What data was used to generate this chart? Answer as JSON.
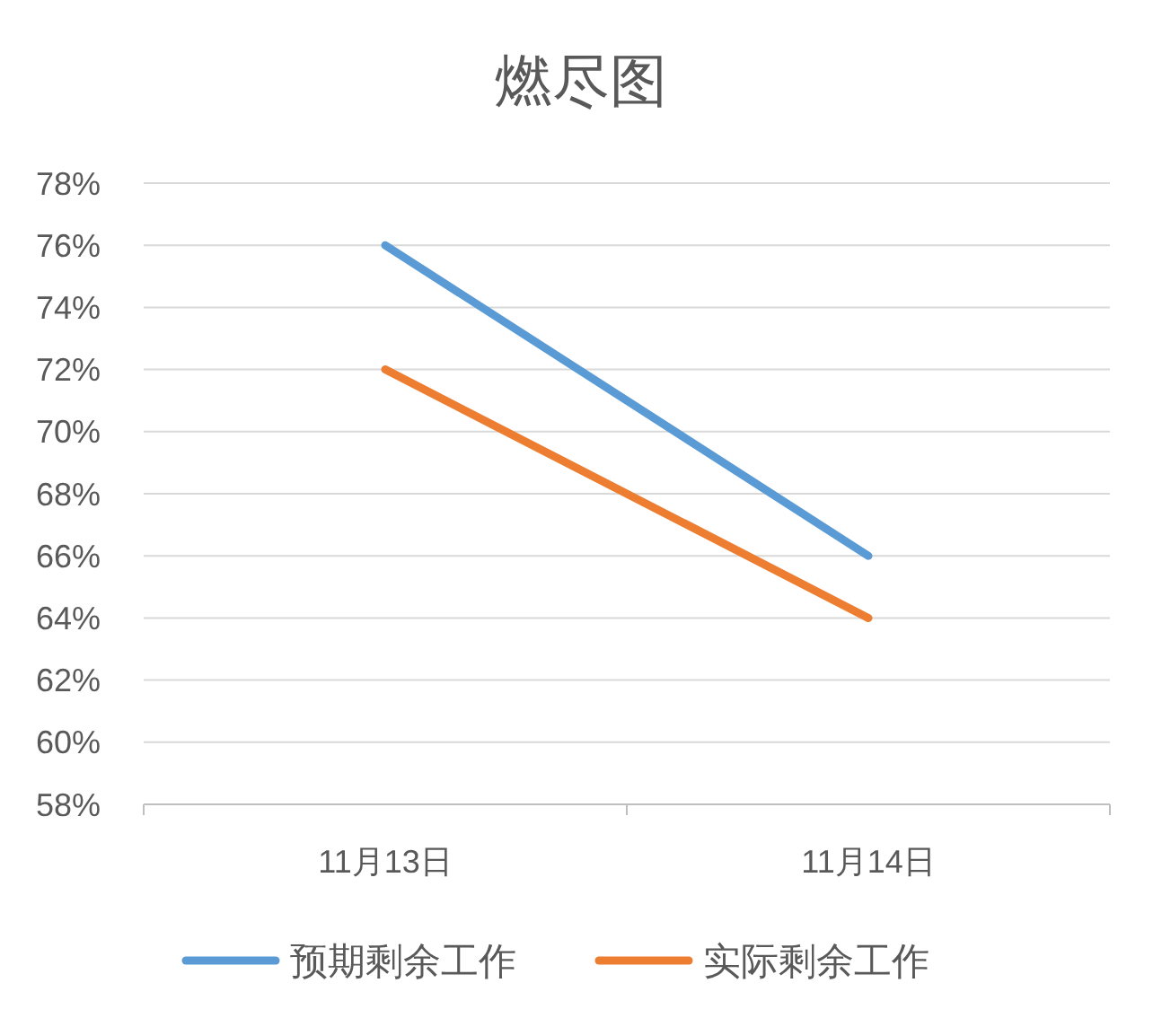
{
  "chart_data": {
    "type": "line",
    "title": "燃尽图",
    "categories": [
      "11月13日",
      "11月14日"
    ],
    "series": [
      {
        "name": "预期剩余工作",
        "color": "#5b9bd5",
        "values": [
          76,
          66
        ]
      },
      {
        "name": "实际剩余工作",
        "color": "#ed7d31",
        "values": [
          72,
          64
        ]
      }
    ],
    "ylim": [
      58,
      78
    ],
    "yticks": [
      {
        "value": 58,
        "label": "58%"
      },
      {
        "value": 60,
        "label": "60%"
      },
      {
        "value": 62,
        "label": "62%"
      },
      {
        "value": 64,
        "label": "64%"
      },
      {
        "value": 66,
        "label": "66%"
      },
      {
        "value": 68,
        "label": "68%"
      },
      {
        "value": 70,
        "label": "70%"
      },
      {
        "value": 72,
        "label": "72%"
      },
      {
        "value": 74,
        "label": "74%"
      },
      {
        "value": 76,
        "label": "76%"
      },
      {
        "value": 78,
        "label": "78%"
      }
    ],
    "grid": "y",
    "legend": "bottom",
    "marker": "none",
    "line_style": "solid"
  }
}
